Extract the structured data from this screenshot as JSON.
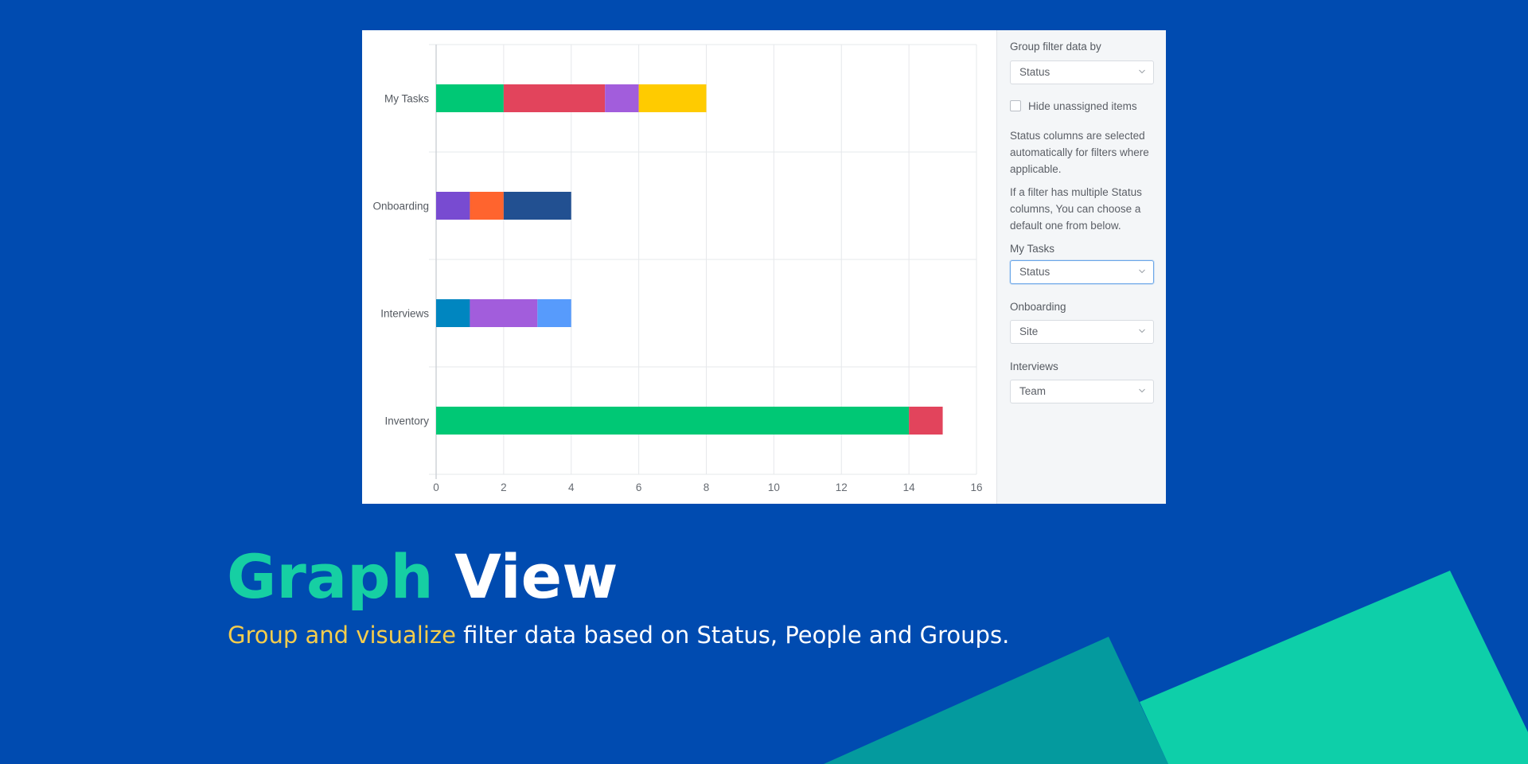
{
  "headline": {
    "word1": "Graph",
    "word2": "View"
  },
  "subline": {
    "highlight": "Group and visualize",
    "rest": " filter data based on Status, People and Groups."
  },
  "colors": {
    "background": "#004bb0",
    "accent_green": "#16cfa3",
    "accent_yellow": "#f5cd4c"
  },
  "panel": {
    "group_label": "Group filter data by",
    "group_select_value": "Status",
    "hide_unassigned_label": "Hide unassigned items",
    "hide_unassigned_checked": false,
    "info_paragraph_1": "Status columns are selected automatically for filters where applicable.",
    "info_paragraph_2": "If a filter has multiple Status columns, You can choose a default one from below.",
    "filters": [
      {
        "label": "My Tasks",
        "value": "Status"
      },
      {
        "label": "Onboarding",
        "value": "Site"
      },
      {
        "label": "Interviews",
        "value": "Team"
      }
    ]
  },
  "chart_data": {
    "type": "bar",
    "orientation": "horizontal",
    "stacked": true,
    "title": "",
    "xlabel": "",
    "ylabel": "",
    "xlim": [
      0,
      16
    ],
    "xticks": [
      0,
      2,
      4,
      6,
      8,
      10,
      12,
      14,
      16
    ],
    "grid": true,
    "categories": [
      "My Tasks",
      "Onboarding",
      "Interviews",
      "Inventory"
    ],
    "bars": [
      {
        "category": "My Tasks",
        "segments": [
          {
            "value": 2,
            "color": "#00c875"
          },
          {
            "value": 3,
            "color": "#e2445c"
          },
          {
            "value": 1,
            "color": "#a25ddc"
          },
          {
            "value": 2,
            "color": "#ffcb00"
          }
        ]
      },
      {
        "category": "Onboarding",
        "segments": [
          {
            "value": 1,
            "color": "#784bd1"
          },
          {
            "value": 1,
            "color": "#ff642e"
          },
          {
            "value": 2,
            "color": "#225091"
          }
        ]
      },
      {
        "category": "Interviews",
        "segments": [
          {
            "value": 1,
            "color": "#0086c0"
          },
          {
            "value": 2,
            "color": "#a25ddc"
          },
          {
            "value": 1,
            "color": "#579bfc"
          }
        ]
      },
      {
        "category": "Inventory",
        "segments": [
          {
            "value": 14,
            "color": "#00c875"
          },
          {
            "value": 1,
            "color": "#e2445c"
          }
        ]
      }
    ]
  }
}
